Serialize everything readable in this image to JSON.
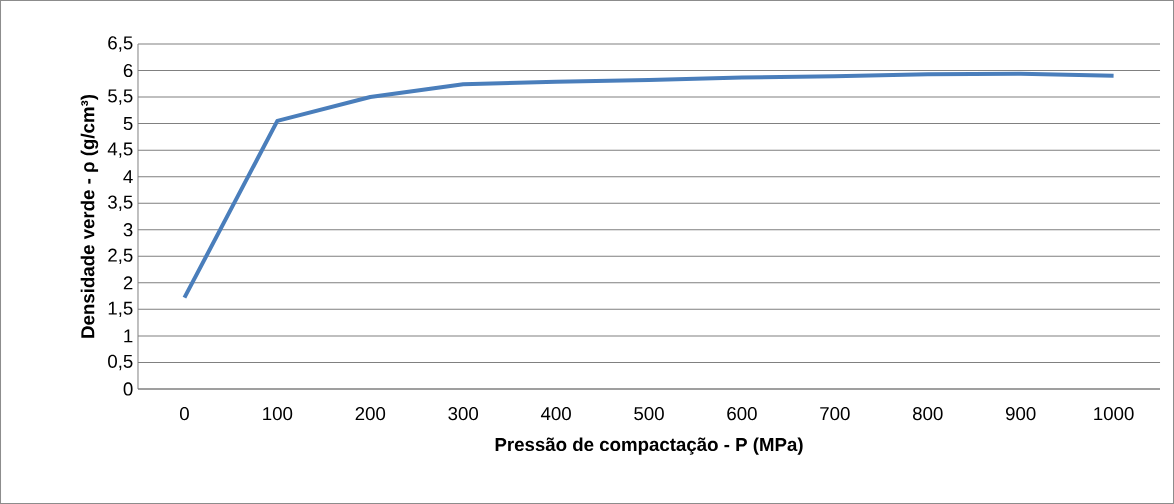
{
  "chart_data": {
    "type": "line",
    "xlabel": "Pressão de compactação - P (MPa)",
    "ylabel": "Densidade verde - ρ (g/cm³)",
    "categories": [
      "0",
      "100",
      "200",
      "300",
      "400",
      "500",
      "600",
      "700",
      "800",
      "900",
      "1000"
    ],
    "values": [
      1.72,
      5.05,
      5.5,
      5.74,
      5.79,
      5.82,
      5.87,
      5.89,
      5.93,
      5.94,
      5.9
    ],
    "color": "#4a7ebb",
    "ylim": [
      0,
      6.5
    ],
    "yticks": [
      0,
      {
        "value": 0.5,
        "label": "0,5"
      },
      1,
      {
        "value": 1.5,
        "label": "1,5"
      },
      2,
      {
        "value": 2.5,
        "label": "2,5"
      },
      3,
      {
        "value": 3.5,
        "label": "3,5"
      },
      4,
      {
        "value": 4.5,
        "label": "4,5"
      },
      5,
      {
        "value": 5.5,
        "label": "5,5"
      },
      6,
      {
        "value": 6.5,
        "label": "6,5"
      }
    ],
    "grid": "y",
    "marker": "none",
    "line_style": "solid"
  }
}
